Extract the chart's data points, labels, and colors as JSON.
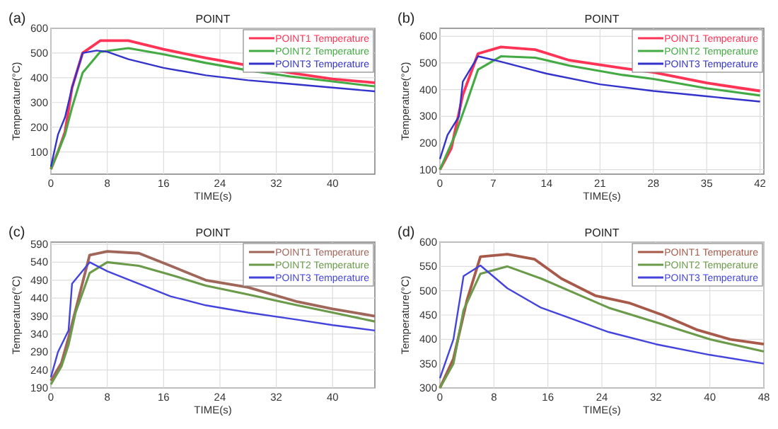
{
  "chart_data": [
    {
      "type": "line",
      "title": "POINT",
      "xlabel": "TIME(s)",
      "ylabel": "Temperature(°C)",
      "annotations": [
        "(a)"
      ],
      "xlim": [
        0,
        46
      ],
      "xticks": [
        0,
        8,
        16,
        24,
        32,
        40
      ],
      "ylim": [
        10,
        600
      ],
      "yticks": [
        100,
        200,
        300,
        400,
        500,
        600
      ],
      "grid": true,
      "legend": "top right",
      "series": [
        {
          "name": "POINT1 Temperature",
          "color": "#ff3355",
          "x": [
            0,
            1,
            2,
            3,
            4.5,
            7,
            11,
            16,
            22,
            28,
            34,
            40,
            46
          ],
          "values": [
            30,
            100,
            180,
            360,
            500,
            550,
            550,
            515,
            480,
            450,
            420,
            395,
            380
          ]
        },
        {
          "name": "POINT2 Temperature",
          "color": "#44aa44",
          "x": [
            0,
            1,
            2,
            3,
            4.5,
            7,
            11,
            16,
            22,
            28,
            34,
            40,
            46
          ],
          "values": [
            30,
            100,
            170,
            280,
            420,
            505,
            520,
            495,
            460,
            430,
            405,
            385,
            365
          ]
        },
        {
          "name": "POINT3 Temperature",
          "color": "#3333cc",
          "x": [
            0,
            1,
            2,
            3,
            4.5,
            6.5,
            8,
            11,
            16,
            22,
            28,
            34,
            40,
            46
          ],
          "values": [
            40,
            170,
            240,
            360,
            500,
            510,
            505,
            475,
            440,
            410,
            390,
            375,
            360,
            345
          ]
        }
      ]
    },
    {
      "type": "line",
      "title": "POINT",
      "xlabel": "TIME(s)",
      "ylabel": "Temperature(°C)",
      "annotations": [
        "(b)"
      ],
      "xlim": [
        0,
        42.5
      ],
      "xticks": [
        0,
        7,
        14,
        21,
        28,
        35,
        42
      ],
      "ylim": [
        83,
        630
      ],
      "yticks": [
        100,
        200,
        300,
        400,
        500,
        600
      ],
      "grid": true,
      "legend": "top right",
      "series": [
        {
          "name": "POINT1 Temperature",
          "color": "#ff3355",
          "x": [
            0,
            1.5,
            3,
            5,
            8,
            12.5,
            17,
            24,
            28,
            35,
            42
          ],
          "values": [
            100,
            180,
            380,
            535,
            560,
            550,
            510,
            480,
            465,
            425,
            395
          ]
        },
        {
          "name": "POINT2 Temperature",
          "color": "#44aa44",
          "x": [
            0,
            2,
            3.5,
            5,
            8,
            12.5,
            17,
            24,
            28,
            35,
            42
          ],
          "values": [
            100,
            230,
            350,
            475,
            525,
            520,
            490,
            455,
            440,
            405,
            378
          ]
        },
        {
          "name": "POINT3 Temperature",
          "color": "#3333cc",
          "x": [
            0,
            1,
            2.5,
            3,
            5,
            8,
            14,
            21,
            28,
            35,
            42
          ],
          "values": [
            140,
            230,
            300,
            430,
            525,
            505,
            460,
            420,
            395,
            375,
            355
          ]
        }
      ]
    },
    {
      "type": "line",
      "title": "POINT",
      "xlabel": "TIME(s)",
      "ylabel": "Temperature(°C)",
      "annotations": [
        "(c)"
      ],
      "xlim": [
        0,
        46
      ],
      "xticks": [
        0,
        8,
        16,
        24,
        32,
        40
      ],
      "ylim": [
        190,
        596
      ],
      "yticks": [
        190,
        240,
        290,
        340,
        390,
        440,
        490,
        540,
        590
      ],
      "grid": true,
      "legend": "top right",
      "series": [
        {
          "name": "POINT1 Temperature",
          "color": "#a0665a",
          "x": [
            0,
            1.5,
            2.5,
            5.5,
            8,
            12.5,
            17,
            22,
            28,
            35,
            40,
            46
          ],
          "values": [
            210,
            260,
            330,
            560,
            570,
            565,
            530,
            490,
            470,
            430,
            410,
            390
          ]
        },
        {
          "name": "POINT2 Temperature",
          "color": "#6a9a4a",
          "x": [
            0,
            1.5,
            2.5,
            3.5,
            5.5,
            8,
            12.5,
            17,
            22,
            28,
            35,
            40,
            46
          ],
          "values": [
            200,
            250,
            310,
            400,
            510,
            540,
            530,
            505,
            475,
            450,
            420,
            400,
            375
          ]
        },
        {
          "name": "POINT3 Temperature",
          "color": "#4444dd",
          "x": [
            0,
            1,
            2.5,
            3,
            5.5,
            8,
            12.5,
            17,
            22,
            28,
            35,
            40,
            46
          ],
          "values": [
            220,
            290,
            350,
            480,
            540,
            515,
            480,
            445,
            420,
            400,
            380,
            365,
            350
          ]
        }
      ]
    },
    {
      "type": "line",
      "title": "POINT",
      "xlabel": "TIME(s)",
      "ylabel": "Temperature(°C)",
      "annotations": [
        "(d)"
      ],
      "xlim": [
        0,
        48
      ],
      "xticks": [
        0,
        8,
        16,
        24,
        32,
        40,
        48
      ],
      "ylim": [
        300,
        600
      ],
      "yticks": [
        300,
        350,
        400,
        450,
        500,
        550,
        600
      ],
      "grid": true,
      "legend": "top right",
      "series": [
        {
          "name": "POINT1 Temperature",
          "color": "#a85a4a",
          "x": [
            0,
            2,
            4,
            6,
            10,
            14,
            18,
            23,
            28,
            33,
            38,
            43,
            48
          ],
          "values": [
            300,
            360,
            480,
            570,
            575,
            565,
            525,
            490,
            475,
            450,
            420,
            400,
            390
          ]
        },
        {
          "name": "POINT2 Temperature",
          "color": "#6a9a4a",
          "x": [
            0,
            2,
            3.5,
            6,
            10,
            15,
            20,
            25,
            32,
            40,
            48
          ],
          "values": [
            300,
            350,
            460,
            535,
            550,
            525,
            495,
            465,
            435,
            400,
            375
          ]
        },
        {
          "name": "POINT3 Temperature",
          "color": "#4444dd",
          "x": [
            0,
            2,
            3.5,
            6,
            10,
            15,
            20,
            25,
            32,
            40,
            48
          ],
          "values": [
            320,
            400,
            530,
            552,
            505,
            465,
            440,
            415,
            390,
            368,
            350
          ]
        }
      ]
    }
  ]
}
